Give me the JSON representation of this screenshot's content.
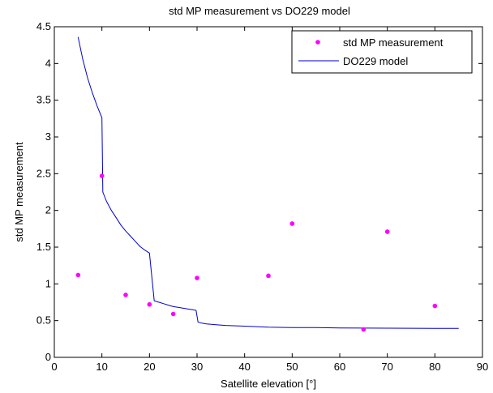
{
  "chart_data": {
    "type": "scatter",
    "title": "std MP measurement vs DO229 model",
    "xlabel": "Satellite elevation [°]",
    "ylabel": "std MP measurement",
    "xlim": [
      0,
      90
    ],
    "ylim": [
      0,
      4.5
    ],
    "xticks": [
      0,
      10,
      20,
      30,
      40,
      50,
      60,
      70,
      80,
      90
    ],
    "yticks": [
      0,
      0.5,
      1,
      1.5,
      2,
      2.5,
      3,
      3.5,
      4,
      4.5
    ],
    "xtick_labels": [
      "0",
      "10",
      "20",
      "30",
      "40",
      "50",
      "60",
      "70",
      "80",
      "90"
    ],
    "ytick_labels": [
      "0",
      "0.5",
      "1",
      "1.5",
      "2",
      "2.5",
      "3",
      "3.5",
      "4",
      "4.5"
    ],
    "grid": false,
    "legend_position": "top-right",
    "series": [
      {
        "name": "std MP measurement",
        "kind": "scatter",
        "color": "#ff00ff",
        "x": [
          5,
          10,
          15,
          20,
          25,
          30,
          45,
          50,
          65,
          70,
          80
        ],
        "y": [
          1.12,
          2.47,
          0.85,
          0.72,
          0.59,
          1.08,
          1.11,
          1.82,
          0.38,
          1.71,
          0.7
        ]
      },
      {
        "name": "DO229 model",
        "kind": "line",
        "color": "#0000cc",
        "x": [
          5,
          6,
          7,
          8,
          9,
          10,
          10.2,
          10.5,
          11,
          12,
          13,
          14,
          15,
          16,
          17,
          18,
          19,
          20,
          21,
          22,
          23,
          24,
          25,
          26,
          27,
          28,
          29,
          29.8,
          30.2,
          31,
          32,
          34,
          36,
          40,
          45,
          50,
          55,
          60,
          65,
          70,
          75,
          80,
          85
        ],
        "y": [
          4.36,
          4.05,
          3.8,
          3.6,
          3.42,
          3.26,
          2.25,
          2.2,
          2.12,
          2.0,
          1.9,
          1.8,
          1.72,
          1.65,
          1.58,
          1.51,
          1.46,
          1.42,
          0.77,
          0.75,
          0.73,
          0.71,
          0.69,
          0.68,
          0.67,
          0.66,
          0.65,
          0.64,
          0.48,
          0.465,
          0.455,
          0.445,
          0.435,
          0.425,
          0.41,
          0.405,
          0.405,
          0.4,
          0.398,
          0.397,
          0.396,
          0.395,
          0.395
        ]
      }
    ]
  }
}
